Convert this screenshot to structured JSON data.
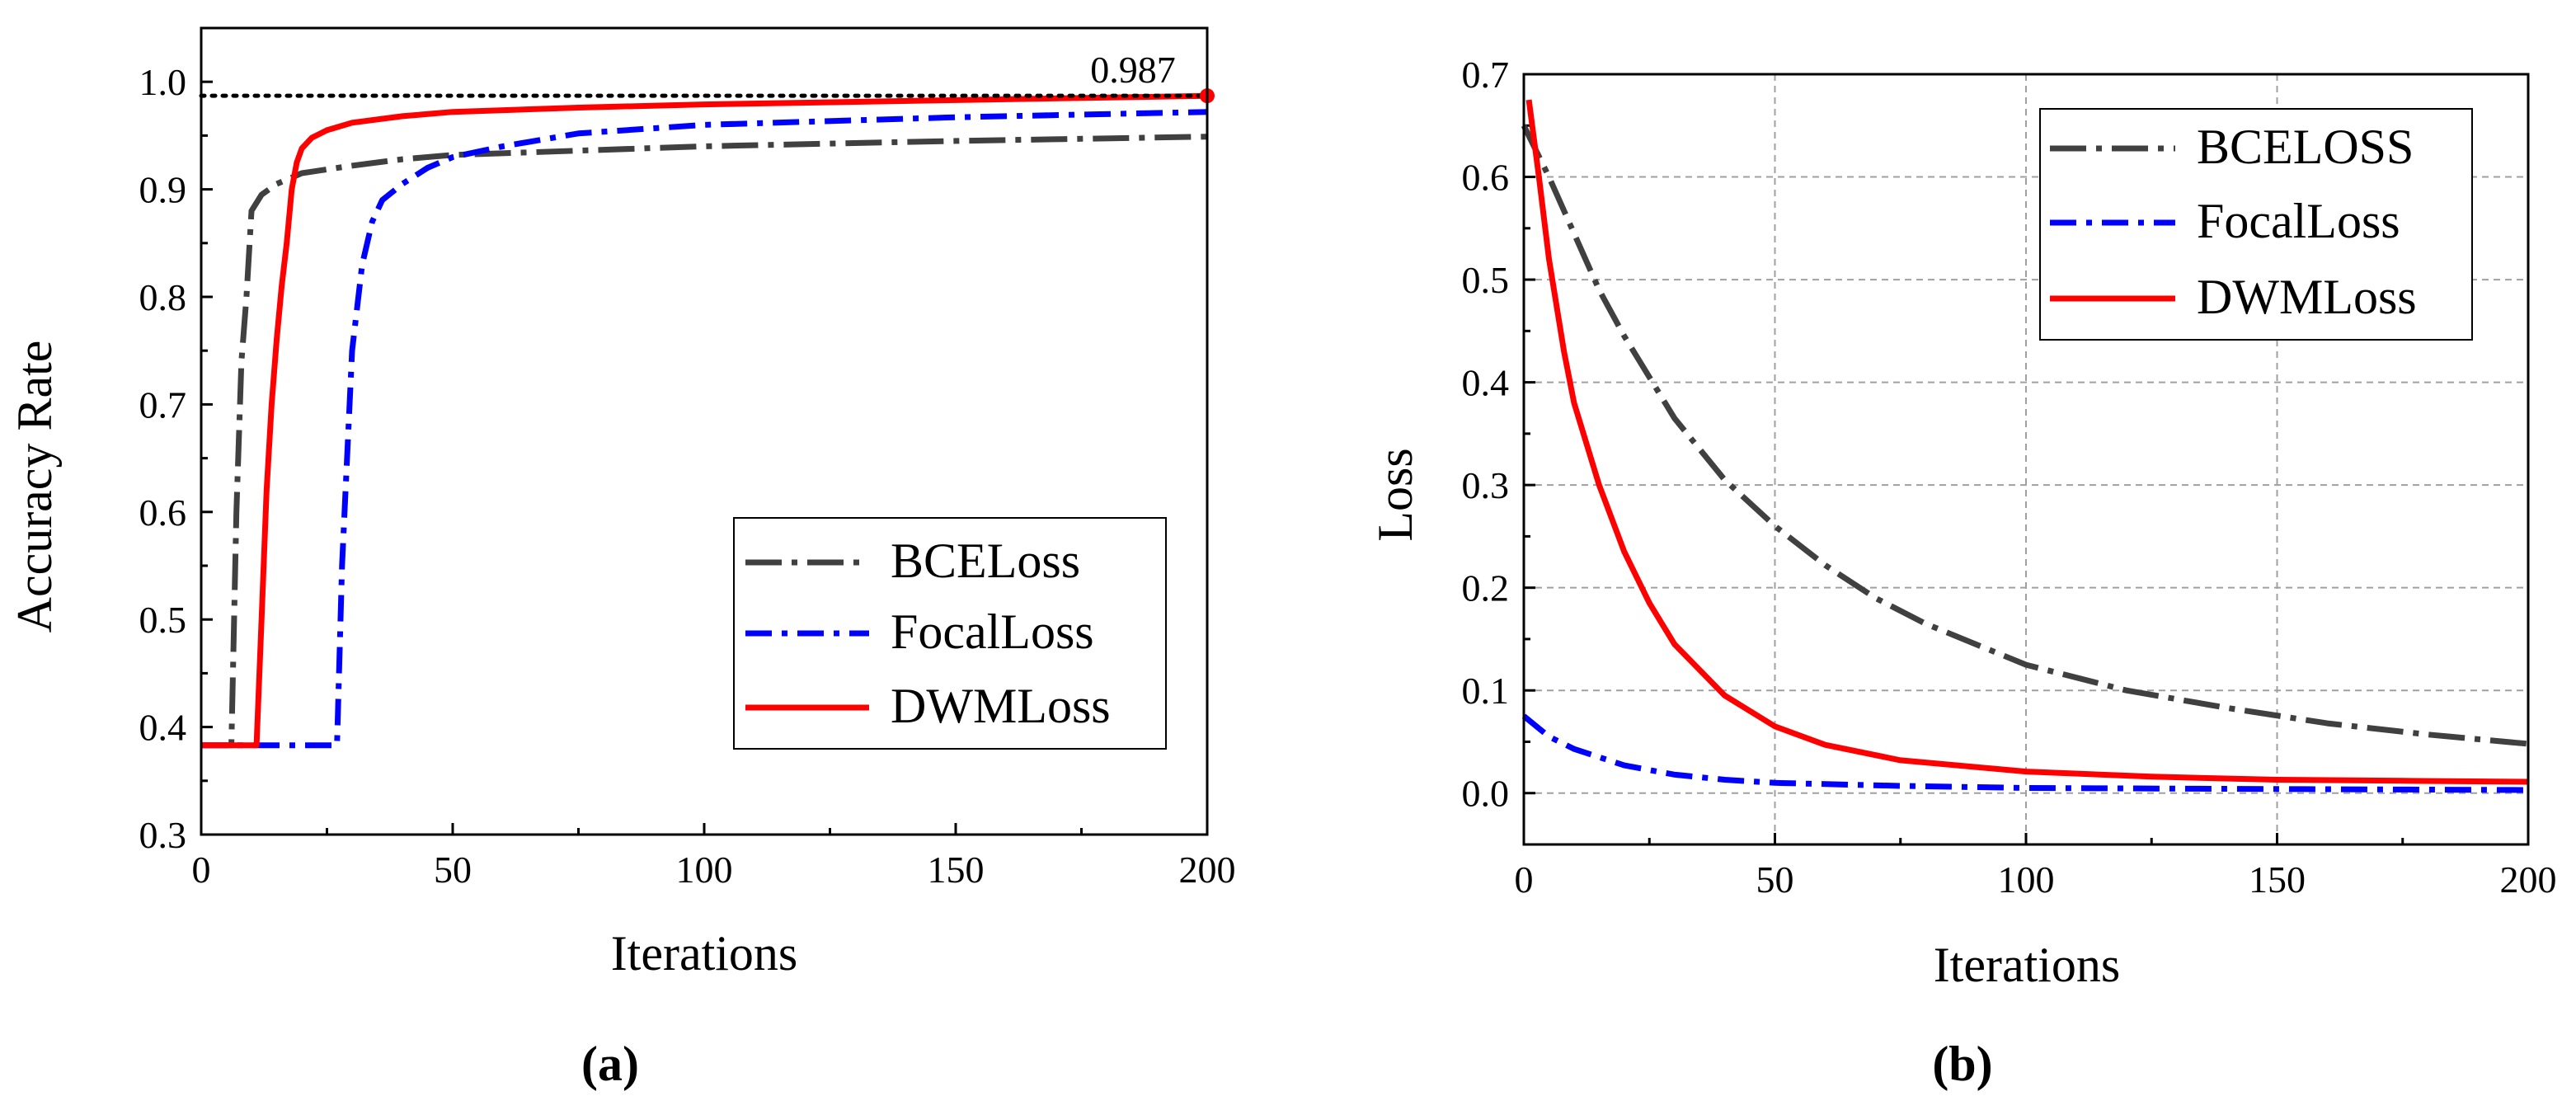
{
  "colors": {
    "bce": "#404040",
    "focal": "#0000ff",
    "dwm": "#ff0000",
    "grid": "#a0a0a0",
    "reference": "#000000"
  },
  "chart_data": [
    {
      "type": "line",
      "panel_label": "(a)",
      "title": "",
      "xlabel": "Iterations",
      "ylabel": "Accuracy Rate",
      "xlim": [
        0,
        200
      ],
      "ylim": [
        0.3,
        1.05
      ],
      "xticks": [
        0,
        50,
        100,
        150,
        200
      ],
      "yticks": [
        0.3,
        0.4,
        0.5,
        0.6,
        0.7,
        0.8,
        0.9,
        1.0
      ],
      "xtick_labels": [
        "0",
        "50",
        "100",
        "150",
        "200"
      ],
      "ytick_labels": [
        "0.3",
        "0.4",
        "0.5",
        "0.6",
        "0.7",
        "0.8",
        "0.9",
        "1.0"
      ],
      "grid": false,
      "legend_position": "center-right",
      "reference_line": {
        "y": 0.987,
        "label": "0.987",
        "marker_x": 200
      },
      "series": [
        {
          "name": "BCELoss",
          "style": "dash-dot",
          "color_key": "bce",
          "x": [
            0,
            6,
            7,
            8,
            9,
            10,
            12,
            15,
            20,
            30,
            40,
            50,
            75,
            100,
            150,
            200
          ],
          "y": [
            0.383,
            0.383,
            0.6,
            0.74,
            0.8,
            0.88,
            0.895,
            0.905,
            0.915,
            0.922,
            0.928,
            0.932,
            0.936,
            0.94,
            0.945,
            0.949
          ]
        },
        {
          "name": "FocalLoss",
          "style": "dash-dot",
          "color_key": "focal",
          "x": [
            0,
            27,
            28,
            30,
            32,
            34,
            36,
            40,
            45,
            50,
            60,
            75,
            100,
            150,
            200
          ],
          "y": [
            0.383,
            0.383,
            0.55,
            0.75,
            0.83,
            0.87,
            0.89,
            0.905,
            0.92,
            0.93,
            0.94,
            0.952,
            0.96,
            0.967,
            0.972
          ]
        },
        {
          "name": "DWMLoss",
          "style": "solid",
          "color_key": "dwm",
          "x": [
            0,
            11,
            12,
            13,
            14,
            15,
            16,
            17,
            18,
            19,
            20,
            22,
            25,
            30,
            40,
            50,
            75,
            100,
            150,
            200
          ],
          "y": [
            0.383,
            0.383,
            0.5,
            0.62,
            0.7,
            0.76,
            0.81,
            0.85,
            0.9,
            0.925,
            0.938,
            0.948,
            0.955,
            0.962,
            0.968,
            0.972,
            0.976,
            0.979,
            0.983,
            0.987
          ]
        }
      ]
    },
    {
      "type": "line",
      "panel_label": "(b)",
      "title": "",
      "xlabel": "Iterations",
      "ylabel": "Loss",
      "xlim": [
        0,
        200
      ],
      "ylim": [
        -0.05,
        0.7
      ],
      "xticks": [
        0,
        50,
        100,
        150,
        200
      ],
      "yticks": [
        0.0,
        0.1,
        0.2,
        0.3,
        0.4,
        0.5,
        0.6,
        0.7
      ],
      "xtick_labels": [
        "0",
        "50",
        "100",
        "150",
        "200"
      ],
      "ytick_labels": [
        "0.0",
        "0.1",
        "0.2",
        "0.3",
        "0.4",
        "0.5",
        "0.6",
        "0.7"
      ],
      "grid": true,
      "legend_position": "top-right",
      "series": [
        {
          "name": "BCELOSS",
          "style": "dash-dot",
          "color_key": "bce",
          "x": [
            0,
            5,
            10,
            15,
            20,
            25,
            30,
            40,
            50,
            60,
            70,
            80,
            90,
            100,
            120,
            140,
            160,
            180,
            200
          ],
          "y": [
            0.65,
            0.6,
            0.545,
            0.49,
            0.445,
            0.405,
            0.365,
            0.305,
            0.26,
            0.222,
            0.19,
            0.165,
            0.145,
            0.125,
            0.1,
            0.083,
            0.068,
            0.057,
            0.048
          ]
        },
        {
          "name": "FocalLoss",
          "style": "dash-dot",
          "color_key": "focal",
          "x": [
            0,
            5,
            10,
            20,
            30,
            40,
            50,
            75,
            100,
            150,
            200
          ],
          "y": [
            0.075,
            0.055,
            0.043,
            0.027,
            0.018,
            0.013,
            0.01,
            0.007,
            0.005,
            0.004,
            0.003
          ]
        },
        {
          "name": "DWMLoss",
          "style": "solid",
          "color_key": "dwm",
          "x": [
            1,
            3,
            5,
            8,
            10,
            15,
            20,
            25,
            30,
            40,
            50,
            60,
            75,
            100,
            125,
            150,
            175,
            200
          ],
          "y": [
            0.675,
            0.6,
            0.52,
            0.43,
            0.38,
            0.3,
            0.235,
            0.185,
            0.145,
            0.095,
            0.065,
            0.047,
            0.032,
            0.021,
            0.016,
            0.013,
            0.012,
            0.011
          ]
        }
      ]
    }
  ]
}
